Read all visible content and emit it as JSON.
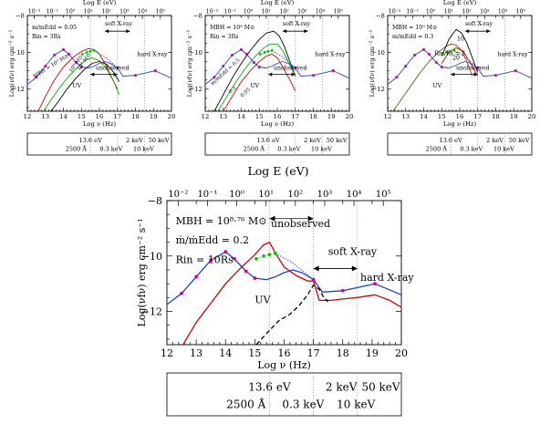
{
  "chart_data": [
    {
      "type": "line",
      "panel": "small-left",
      "top_axis_title": "Log E (eV)",
      "top_ticks": [
        "10⁻²",
        "10⁻¹",
        "10⁰",
        "10¹",
        "10²",
        "10³",
        "10⁴",
        "10⁵"
      ],
      "xlabel": "Log ν (Hz)",
      "ylabel": "Log(νfν) erg cm⁻² s⁻¹",
      "x_ticks": [
        "12",
        "13",
        "14",
        "15",
        "16",
        "17",
        "18",
        "19",
        "20"
      ],
      "y_ticks": [
        "−8",
        "−10",
        "−12"
      ],
      "xlim": [
        12,
        20
      ],
      "ylim": [
        -13.2,
        -8
      ],
      "annotations": [
        "m/mEdd = 0.05",
        "Rin = 3Rs",
        "MBH = 10⁹ M⊙",
        "10⁸ M⊙",
        "10⁷ M⊙",
        "UV",
        "unobserved",
        "soft X-ray",
        "hard X-ray"
      ],
      "series": [
        {
          "color": "#d40000",
          "x": [
            12.6,
            13.0,
            13.5,
            14.0,
            14.5,
            15.0,
            15.4,
            15.7,
            16.0,
            16.3,
            16.6,
            17.0
          ],
          "y": [
            -13.2,
            -12.4,
            -11.5,
            -10.8,
            -10.3,
            -9.95,
            -9.8,
            -9.85,
            -10.1,
            -10.6,
            -11.2,
            -12.0
          ]
        },
        {
          "color": "#00b000",
          "x": [
            12.9,
            13.3,
            13.8,
            14.3,
            14.8,
            15.2,
            15.6,
            16.0,
            16.4,
            16.8,
            17.1
          ],
          "y": [
            -13.2,
            -12.6,
            -11.9,
            -11.3,
            -10.8,
            -10.45,
            -10.3,
            -10.45,
            -10.9,
            -11.6,
            -12.3
          ]
        },
        {
          "color": "#000000",
          "x": [
            13.3,
            13.7,
            14.2,
            14.7,
            15.2,
            15.6,
            16.0,
            16.4,
            16.8,
            17.1
          ],
          "y": [
            -13.2,
            -12.7,
            -12.0,
            -11.4,
            -10.9,
            -10.6,
            -10.5,
            -10.65,
            -11.1,
            -11.6
          ]
        },
        {
          "color": "#1f3fd8",
          "x": [
            12.0,
            12.5,
            13.0,
            13.5,
            14.0,
            14.3,
            14.7,
            15.0,
            15.4,
            15.7,
            16.0,
            16.3,
            16.6,
            17.0,
            17.3,
            18.0,
            19.1,
            20.0
          ],
          "y": [
            -11.75,
            -11.35,
            -10.75,
            -10.15,
            -9.85,
            -10.1,
            -10.55,
            -10.8,
            -10.85,
            -10.75,
            -10.6,
            -10.5,
            -10.6,
            -10.85,
            -11.3,
            -11.25,
            -11.0,
            -11.4
          ]
        }
      ],
      "points_magenta": {
        "x": [
          12.5,
          13.0,
          13.5,
          14.0,
          14.3,
          14.7,
          15.0,
          17.0,
          18.0,
          19.1
        ],
        "y": [
          -11.35,
          -10.75,
          -10.15,
          -9.85,
          -10.1,
          -10.55,
          -10.8,
          -10.85,
          -11.25,
          -11.0
        ]
      },
      "points_green": {
        "x": [
          15.05,
          15.3,
          15.5,
          15.7
        ],
        "y": [
          -10.1,
          -10.0,
          -9.95,
          -9.9
        ]
      },
      "dotted_blue": {
        "x": [
          15.7,
          16.3,
          17.0
        ],
        "y": [
          -9.9,
          -10.25,
          -10.85
        ]
      },
      "energy_box": [
        "13.6 eV",
        "2 keV",
        "50 keV",
        "2500 Å",
        "0.3 keV",
        "10 keV"
      ]
    },
    {
      "type": "line",
      "panel": "small-middle",
      "top_axis_title": "Log E (eV)",
      "top_ticks": [
        "10⁻²",
        "10⁻¹",
        "10⁰",
        "10¹",
        "10²",
        "10³",
        "10⁴",
        "10⁵"
      ],
      "xlabel": "Log ν (Hz)",
      "ylabel": "Log(νfν) erg cm⁻² s⁻¹",
      "x_ticks": [
        "12",
        "13",
        "14",
        "15",
        "16",
        "17",
        "18",
        "19",
        "20"
      ],
      "y_ticks": [
        "−8",
        "−10",
        "−12"
      ],
      "xlim": [
        12,
        20
      ],
      "ylim": [
        -13.2,
        -8
      ],
      "annotations": [
        "MBH = 10⁸ M⊙",
        "Rin = 3Rs",
        "m/mEdd = 0.5",
        "0.3",
        "0.05",
        "UV",
        "unobserved",
        "soft X-ray",
        "hard X-ray"
      ],
      "series": [
        {
          "color": "#000000",
          "x": [
            12.5,
            13.0,
            13.5,
            14.0,
            14.5,
            15.0,
            15.4,
            15.8,
            16.1,
            16.4,
            16.7,
            17.0
          ],
          "y": [
            -13.2,
            -12.3,
            -11.4,
            -10.6,
            -9.9,
            -9.3,
            -8.95,
            -8.85,
            -9.1,
            -9.7,
            -10.5,
            -11.3
          ]
        },
        {
          "color": "#00b000",
          "x": [
            12.7,
            13.2,
            13.7,
            14.2,
            14.7,
            15.2,
            15.6,
            16.0,
            16.3,
            16.6,
            17.0
          ],
          "y": [
            -13.2,
            -12.4,
            -11.6,
            -10.9,
            -10.3,
            -9.8,
            -9.55,
            -9.55,
            -9.9,
            -10.5,
            -11.3
          ]
        },
        {
          "color": "#d40000",
          "x": [
            13.0,
            13.5,
            14.0,
            14.5,
            15.0,
            15.4,
            15.7,
            16.0,
            16.3,
            16.7,
            17.0
          ],
          "y": [
            -13.2,
            -12.4,
            -11.6,
            -11.0,
            -10.5,
            -10.2,
            -10.1,
            -10.3,
            -10.8,
            -11.5,
            -12.1
          ]
        },
        {
          "color": "#1f3fd8",
          "x": [
            12.0,
            12.5,
            13.0,
            13.5,
            14.0,
            14.3,
            14.7,
            15.0,
            15.4,
            15.7,
            16.0,
            16.3,
            16.6,
            17.0,
            17.3,
            18.0,
            19.1,
            20.0
          ],
          "y": [
            -11.75,
            -11.35,
            -10.75,
            -10.15,
            -9.85,
            -10.1,
            -10.55,
            -10.8,
            -10.85,
            -10.75,
            -10.6,
            -10.5,
            -10.6,
            -10.85,
            -11.3,
            -11.25,
            -11.0,
            -11.4
          ]
        }
      ],
      "points_magenta": {
        "x": [
          12.5,
          13.0,
          13.5,
          14.0,
          14.3,
          14.7,
          15.0,
          17.0,
          18.0,
          19.1
        ],
        "y": [
          -11.35,
          -10.75,
          -10.15,
          -9.85,
          -10.1,
          -10.55,
          -10.8,
          -10.85,
          -11.25,
          -11.0
        ]
      },
      "points_green": {
        "x": [
          15.05,
          15.3,
          15.5,
          15.7
        ],
        "y": [
          -10.1,
          -10.0,
          -9.95,
          -9.9
        ]
      },
      "dotted_blue": {
        "x": [
          15.7,
          16.3,
          17.0
        ],
        "y": [
          -9.9,
          -10.25,
          -10.85
        ]
      },
      "energy_box": [
        "13.6 eV",
        "2 keV",
        "50 keV",
        "2500 Å",
        "0.3 keV",
        "10 keV"
      ]
    },
    {
      "type": "line",
      "panel": "small-right",
      "top_axis_title": "Log E (eV)",
      "top_ticks": [
        "10⁻²",
        "10⁻¹",
        "10⁰",
        "10¹",
        "10²",
        "10³",
        "10⁴",
        "10⁵"
      ],
      "xlabel": "Log ν (Hz)",
      "ylabel": "Log(νfν) erg cm⁻² s⁻¹",
      "x_ticks": [
        "12",
        "13",
        "14",
        "15",
        "16",
        "17",
        "18",
        "19",
        "20"
      ],
      "y_ticks": [
        "−8",
        "−10",
        "−12"
      ],
      "xlim": [
        12,
        20
      ],
      "ylim": [
        -13.2,
        -8
      ],
      "annotations": [
        "MBH = 10⁹ M⊙",
        "m/mEdd = 0.3",
        "Rin/Rs = 3",
        "10",
        "20",
        "UV",
        "unobserved",
        "soft X-ray",
        "hard X-ray"
      ],
      "series": [
        {
          "color": "#8b4513",
          "x": [
            12.3,
            12.8,
            13.3,
            13.8,
            14.3,
            14.8,
            15.2,
            15.5,
            15.8,
            16.1,
            16.4,
            16.7
          ],
          "y": [
            -13.2,
            -12.5,
            -11.8,
            -11.1,
            -10.5,
            -10.0,
            -9.7,
            -9.55,
            -9.6,
            -9.9,
            -10.5,
            -11.3
          ]
        },
        {
          "color": "#000000",
          "x": [
            15.0,
            15.4,
            15.8,
            16.1,
            16.4,
            16.7,
            17.0
          ],
          "y": [
            -10.2,
            -9.3,
            -8.75,
            -8.95,
            -9.5,
            -10.3,
            -11.1
          ]
        },
        {
          "color": "#d40000",
          "x": [
            15.0,
            15.4,
            15.8,
            16.2,
            16.6,
            17.0
          ],
          "y": [
            -10.6,
            -10.0,
            -9.75,
            -9.95,
            -10.6,
            -11.3
          ]
        },
        {
          "color": "#1f3fd8",
          "x": [
            12.0,
            12.5,
            13.0,
            13.5,
            14.0,
            14.3,
            14.7,
            15.0,
            15.4,
            15.7,
            16.0,
            16.3,
            16.6,
            17.0,
            17.3,
            18.0,
            19.1,
            20.0
          ],
          "y": [
            -11.75,
            -11.35,
            -10.75,
            -10.15,
            -9.85,
            -10.1,
            -10.55,
            -10.8,
            -10.85,
            -10.75,
            -10.6,
            -10.5,
            -10.6,
            -10.85,
            -11.3,
            -11.25,
            -11.0,
            -11.4
          ]
        }
      ],
      "points_magenta": {
        "x": [
          12.5,
          13.0,
          13.5,
          14.0,
          14.3,
          14.7,
          15.0,
          17.0,
          18.0,
          19.1
        ],
        "y": [
          -11.35,
          -10.75,
          -10.15,
          -9.85,
          -10.1,
          -10.55,
          -10.8,
          -10.85,
          -11.25,
          -11.0
        ]
      },
      "points_green": {
        "x": [
          15.05,
          15.3,
          15.5,
          15.7
        ],
        "y": [
          -10.1,
          -10.0,
          -9.95,
          -9.9
        ]
      },
      "dotted_blue": {
        "x": [
          15.7,
          16.3,
          17.0
        ],
        "y": [
          -9.9,
          -10.25,
          -10.85
        ]
      },
      "energy_box": [
        "13.6 eV",
        "2 keV",
        "50 keV",
        "2500 Å",
        "0.3 keV",
        "10 keV"
      ]
    },
    {
      "type": "line",
      "panel": "large",
      "top_axis_title": "Log E (eV)",
      "top_ticks": [
        "10⁻²",
        "10⁻¹",
        "10⁰",
        "10¹",
        "10²",
        "10³",
        "10⁴",
        "10⁵"
      ],
      "xlabel": "Log ν (Hz)",
      "ylabel": "Log(νfν) erg cm⁻² s⁻¹",
      "x_ticks": [
        "12",
        "13",
        "14",
        "15",
        "16",
        "17",
        "18",
        "19",
        "20"
      ],
      "y_ticks": [
        "−8",
        "−10",
        "−12"
      ],
      "xlim": [
        12,
        20
      ],
      "ylim": [
        -13.2,
        -8
      ],
      "annotations": [
        "MBH = 10⁸·⁷⁶ M⊙",
        "ṁ/ṁEdd = 0.2",
        "Rin = 10Rs",
        "UV",
        "unobserved",
        "soft X-ray",
        "hard X-ray"
      ],
      "series": [
        {
          "color": "#d40000",
          "x": [
            12.55,
            13.0,
            13.5,
            14.0,
            14.5,
            15.0,
            15.3,
            15.5,
            15.7,
            16.0,
            16.4,
            16.8,
            17.0,
            17.2,
            17.6,
            18.0,
            18.5,
            19.1,
            19.6,
            20.0
          ],
          "y": [
            -13.2,
            -12.4,
            -11.7,
            -11.0,
            -10.45,
            -9.95,
            -9.6,
            -9.5,
            -9.9,
            -10.4,
            -10.7,
            -10.9,
            -10.9,
            -11.6,
            -11.6,
            -11.55,
            -11.5,
            -11.4,
            -11.6,
            -11.85
          ]
        },
        {
          "color": "#1f3fd8",
          "x": [
            12.0,
            12.5,
            13.0,
            13.5,
            14.0,
            14.3,
            14.7,
            15.0,
            15.4,
            15.7,
            16.0,
            16.3,
            16.6,
            17.0,
            17.3,
            18.0,
            19.1,
            20.0
          ],
          "y": [
            -11.75,
            -11.35,
            -10.75,
            -10.15,
            -9.85,
            -10.1,
            -10.55,
            -10.8,
            -10.85,
            -10.75,
            -10.6,
            -10.5,
            -10.6,
            -10.85,
            -11.3,
            -11.25,
            -11.0,
            -11.4
          ]
        },
        {
          "color": "#000000",
          "dashed": true,
          "x": [
            15.05,
            15.4,
            15.8,
            16.2,
            16.5,
            16.8,
            17.0,
            17.2,
            17.35,
            17.5
          ],
          "y": [
            -13.2,
            -12.8,
            -12.35,
            -12.1,
            -11.8,
            -11.4,
            -11.05,
            -11.2,
            -11.5,
            -11.65
          ]
        }
      ],
      "points_magenta": {
        "x": [
          12.5,
          13.0,
          13.5,
          14.0,
          14.3,
          14.7,
          15.0,
          17.0,
          18.0,
          19.1
        ],
        "y": [
          -11.35,
          -10.75,
          -10.15,
          -9.85,
          -10.1,
          -10.55,
          -10.8,
          -10.85,
          -11.25,
          -11.0
        ]
      },
      "points_green": {
        "x": [
          15.05,
          15.3,
          15.5,
          15.7
        ],
        "y": [
          -10.1,
          -10.0,
          -9.95,
          -9.9
        ]
      },
      "dotted_blue": {
        "x": [
          15.7,
          16.3,
          17.0
        ],
        "y": [
          -9.9,
          -10.25,
          -10.85
        ]
      },
      "energy_box": [
        "13.6 eV",
        "2 keV",
        "50 keV",
        "2500 Å",
        "0.3 keV",
        "10 keV"
      ]
    }
  ]
}
